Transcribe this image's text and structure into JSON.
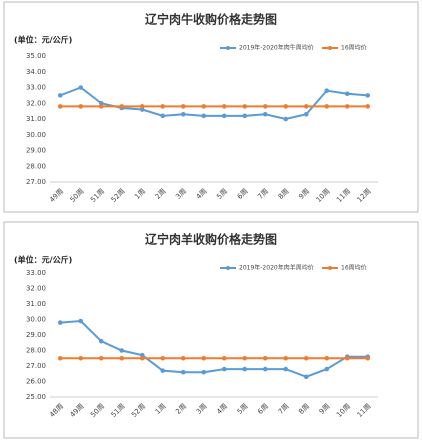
{
  "chart_data": [
    {
      "type": "line",
      "title": "辽宁肉牛收购价格走势图",
      "unit_label": "(单位：元/公斤)",
      "categories": [
        "49周",
        "50周",
        "51周",
        "52周",
        "1周",
        "2周",
        "3周",
        "4周",
        "5周",
        "6周",
        "7周",
        "8周",
        "9周",
        "10周",
        "11周",
        "12周"
      ],
      "series": [
        {
          "name": "2019年-2020年肉牛周均价",
          "color": "#5b9bd5",
          "values": [
            32.5,
            33.0,
            32.0,
            31.7,
            31.6,
            31.2,
            31.3,
            31.2,
            31.2,
            31.2,
            31.3,
            31.0,
            31.3,
            32.8,
            32.6,
            32.5
          ]
        },
        {
          "name": "16周均价",
          "color": "#ed7d31",
          "values": [
            31.8,
            31.8,
            31.8,
            31.8,
            31.8,
            31.8,
            31.8,
            31.8,
            31.8,
            31.8,
            31.8,
            31.8,
            31.8,
            31.8,
            31.8,
            31.8
          ]
        }
      ],
      "ylim": [
        27,
        35
      ],
      "yticks": [
        {
          "value": 27,
          "label": "27.00"
        },
        {
          "value": 28,
          "label": "28.00"
        },
        {
          "value": 29,
          "label": "29.00"
        },
        {
          "value": 30,
          "label": "30.00"
        },
        {
          "value": 31,
          "label": "31.00"
        },
        {
          "value": 32,
          "label": "32.00"
        },
        {
          "value": 33,
          "label": "33.00"
        },
        {
          "value": 34,
          "label": "34.00"
        },
        {
          "value": 35,
          "label": "35.00"
        }
      ],
      "grid": false
    },
    {
      "type": "line",
      "title": "辽宁肉羊收购价格走势图",
      "unit_label": "(单位：元/公斤)",
      "categories": [
        "48周",
        "49周",
        "50周",
        "51周",
        "52周",
        "1周",
        "2周",
        "3周",
        "4周",
        "5周",
        "6周",
        "7周",
        "8周",
        "9周",
        "10周",
        "11周"
      ],
      "series": [
        {
          "name": "2019年-2020年肉羊周均价",
          "color": "#5b9bd5",
          "values": [
            29.8,
            29.9,
            28.6,
            28.0,
            27.7,
            26.7,
            26.6,
            26.6,
            26.8,
            26.8,
            26.8,
            26.8,
            26.3,
            26.8,
            27.6,
            27.6
          ]
        },
        {
          "name": "16周均价",
          "color": "#ed7d31",
          "values": [
            27.5,
            27.5,
            27.5,
            27.5,
            27.5,
            27.5,
            27.5,
            27.5,
            27.5,
            27.5,
            27.5,
            27.5,
            27.5,
            27.5,
            27.5,
            27.5
          ]
        }
      ],
      "ylim": [
        25,
        33
      ],
      "yticks": [
        {
          "value": 25,
          "label": "25.00"
        },
        {
          "value": 26,
          "label": "26.00"
        },
        {
          "value": 27,
          "label": "27.00"
        },
        {
          "value": 28,
          "label": "28.00"
        },
        {
          "value": 29,
          "label": "29.00"
        },
        {
          "value": 30,
          "label": "30.00"
        },
        {
          "value": 31,
          "label": "31.00"
        },
        {
          "value": 32,
          "label": "32.00"
        },
        {
          "value": 33,
          "label": "33.00"
        }
      ],
      "grid": false
    }
  ]
}
